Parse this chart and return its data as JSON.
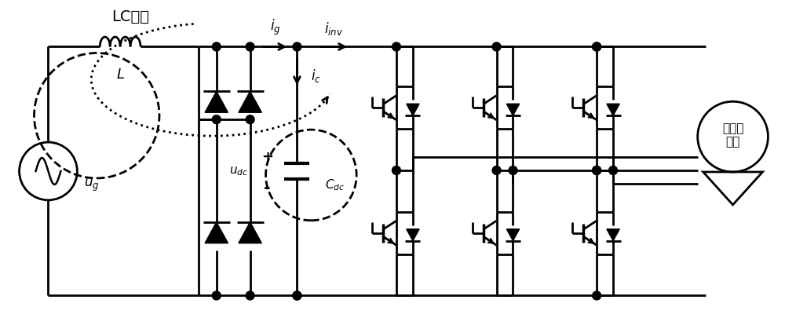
{
  "bg_color": "#ffffff",
  "lw": 2.0,
  "lc_label": "LC谐振",
  "L_label": "L",
  "ug_label": "u_g",
  "ig_label": "i_g",
  "iinv_label": "i_{inv}",
  "ic_label": "i_c",
  "udc_label": "u_{dc}",
  "Cdc_label": "C_{dc}",
  "motor_label": "永磁压\n缩机",
  "plus_label": "+",
  "minus_label": "-"
}
